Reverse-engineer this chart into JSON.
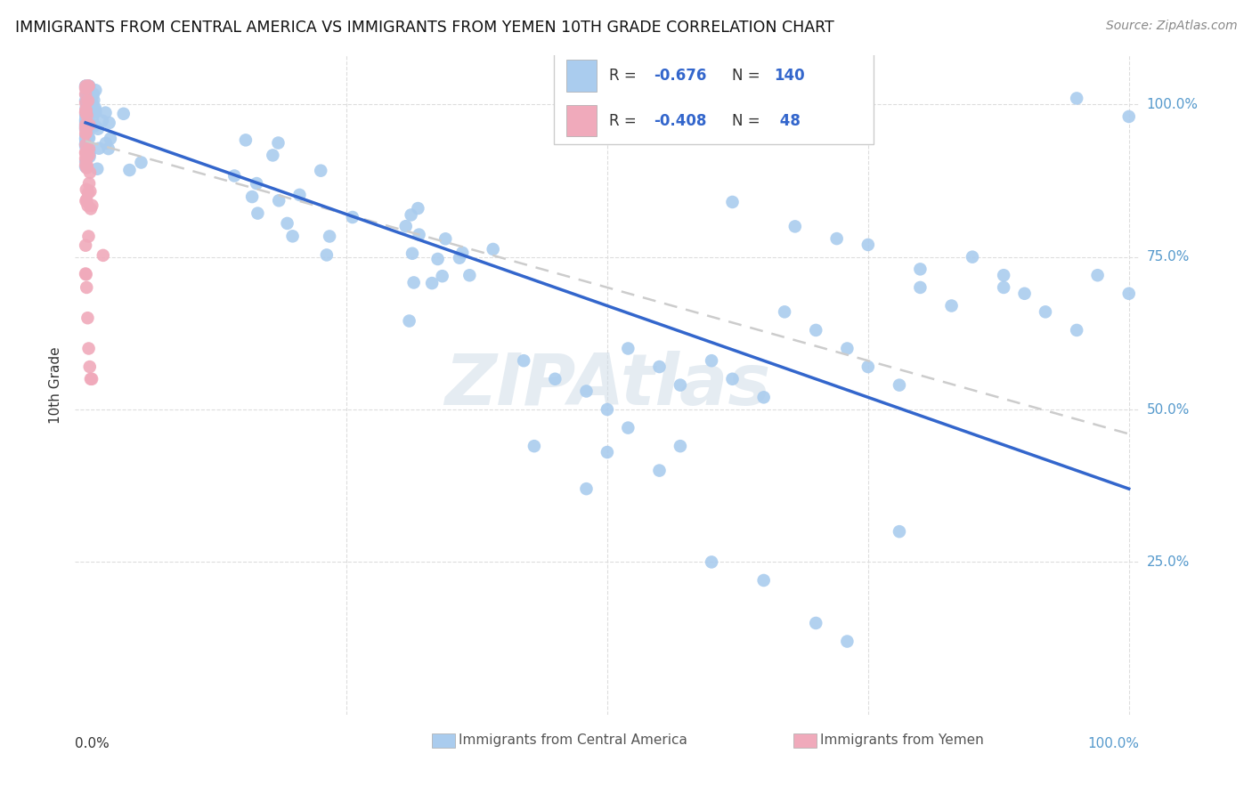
{
  "title": "IMMIGRANTS FROM CENTRAL AMERICA VS IMMIGRANTS FROM YEMEN 10TH GRADE CORRELATION CHART",
  "source": "Source: ZipAtlas.com",
  "ylabel": "10th Grade",
  "legend_blue_label": "Immigrants from Central America",
  "legend_pink_label": "Immigrants from Yemen",
  "blue_color": "#aaccee",
  "pink_color": "#f0aabb",
  "blue_line_color": "#3366cc",
  "pink_line_color": "#cccccc",
  "watermark_color": "#d0dde8",
  "background_color": "#ffffff",
  "grid_color": "#dddddd",
  "right_tick_color": "#5599cc",
  "text_color": "#333333",
  "source_color": "#888888",
  "blue_R": "-0.676",
  "blue_N": "140",
  "pink_R": "-0.408",
  "pink_N": "48",
  "blue_line_start_y": 0.97,
  "blue_line_end_y": 0.37,
  "pink_line_start_y": 0.94,
  "pink_line_end_y": 0.46,
  "xlim_min": -0.01,
  "xlim_max": 1.01,
  "ylim_min": 0.0,
  "ylim_max": 1.08
}
